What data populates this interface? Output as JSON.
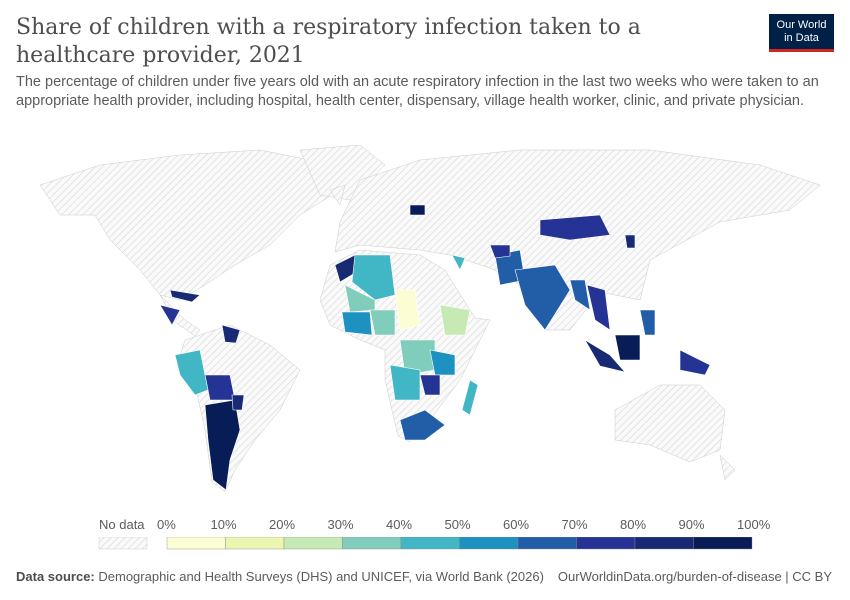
{
  "header": {
    "title": "Share of children with a respiratory infection taken to a healthcare provider, 2021",
    "subtitle": "The percentage of children under five years old with an acute respiratory infection in the last two weeks who were taken to an appropriate health provider, including hospital, health center, dispensary, village health worker, clinic, and private physician.",
    "logo_line1": "Our World",
    "logo_line2": "in Data"
  },
  "legend": {
    "no_data_label": "No data",
    "ticks": [
      "0%",
      "10%",
      "20%",
      "30%",
      "40%",
      "50%",
      "60%",
      "70%",
      "80%",
      "90%",
      "100%"
    ],
    "bins": [
      "#fdfdd4",
      "#ebf6b0",
      "#c7e9b4",
      "#80cdbb",
      "#41b6c4",
      "#1d91c0",
      "#225ea8",
      "#253494",
      "#182a74",
      "#081d58"
    ],
    "no_data_color": "#e8e8e8"
  },
  "footer": {
    "source_label": "Data source:",
    "source_text": "Demographic and Health Surveys (DHS) and UNICEF, via World Bank (2026)",
    "url_text": "OurWorldinData.org/burden-of-disease | CC BY"
  }
}
